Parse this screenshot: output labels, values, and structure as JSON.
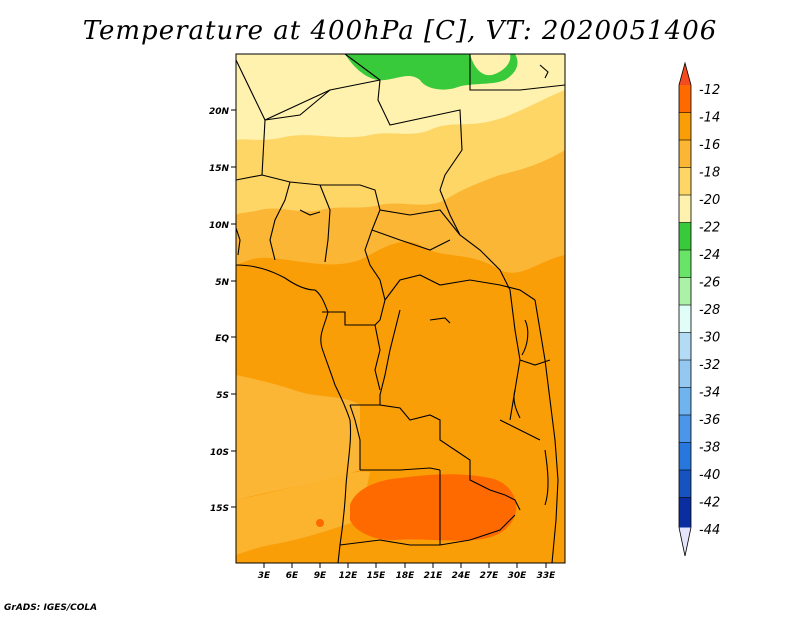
{
  "title": "Temperature at 400hPa [C], VT: 2020051406",
  "footer": "GrADS: IGES/COLA",
  "map": {
    "lat_ticks": [
      "20N",
      "15N",
      "10N",
      "5N",
      "EQ",
      "5S",
      "10S",
      "15S"
    ],
    "lon_ticks": [
      "3E",
      "6E",
      "9E",
      "12E",
      "15E",
      "18E",
      "21E",
      "24E",
      "27E",
      "30E",
      "33E"
    ],
    "extent": {
      "lon": [
        0,
        35
      ],
      "lat": [
        -20,
        25
      ]
    }
  },
  "colorbar": {
    "labels": [
      "-12",
      "-14",
      "-16",
      "-18",
      "-20",
      "-22",
      "-24",
      "-26",
      "-28",
      "-30",
      "-32",
      "-34",
      "-36",
      "-38",
      "-40",
      "-42",
      "-44"
    ],
    "colors": {
      "above": "#f34a1f",
      "bins": [
        "#ff6a00",
        "#fa9e08",
        "#fbb635",
        "#fed666",
        "#fff2ae",
        "#38ca3a",
        "#68e466",
        "#aaf2a7",
        "#e1fdf8",
        "#b3dbf5",
        "#95c8f1",
        "#6fb3ef",
        "#4b96e8",
        "#2877dc",
        "#1753bf",
        "#0a2ea0"
      ],
      "below": "#e4e4fa",
      "below_first": "#0c1070"
    }
  }
}
